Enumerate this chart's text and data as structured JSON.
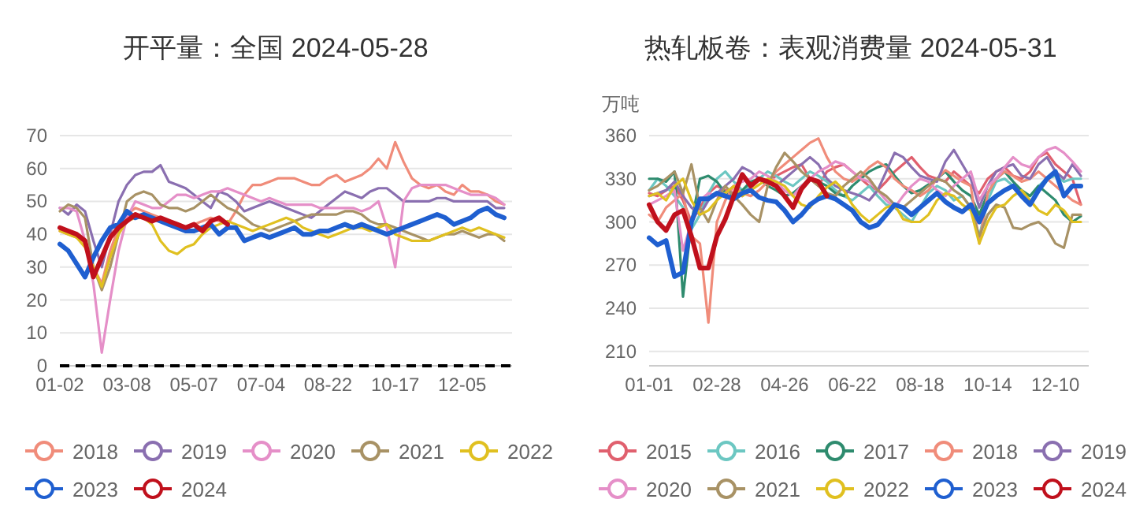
{
  "chart_data": [
    {
      "type": "line",
      "title": "开平量：全国 2024-05-28",
      "categories": [
        "01-02",
        null,
        null,
        null,
        null,
        null,
        null,
        null,
        "03-08",
        null,
        null,
        null,
        null,
        null,
        null,
        null,
        "05-07",
        null,
        null,
        null,
        null,
        null,
        null,
        null,
        "07-04",
        null,
        null,
        null,
        null,
        null,
        null,
        null,
        "08-22",
        null,
        null,
        null,
        null,
        null,
        null,
        null,
        "10-17",
        null,
        null,
        null,
        null,
        null,
        null,
        null,
        "12-05",
        null,
        null,
        null,
        null,
        null
      ],
      "ylim": [
        0,
        70
      ],
      "yticks": [
        0,
        10,
        20,
        30,
        40,
        50,
        60,
        70
      ],
      "grid": "y",
      "legend": "bottom",
      "ref_lines": [
        {
          "axis": "y",
          "value": 0,
          "color": "#000000",
          "line_style": "dashed"
        }
      ],
      "series": [
        {
          "name": "2018",
          "color": "#f08c7a",
          "values": [
            41,
            40,
            39,
            37,
            30,
            25,
            35,
            42,
            46,
            48,
            47,
            46,
            45,
            44,
            43,
            42,
            43,
            44,
            45,
            44,
            43,
            47,
            52,
            55,
            55,
            56,
            57,
            57,
            57,
            56,
            55,
            55,
            57,
            58,
            56,
            57,
            58,
            60,
            63,
            60,
            68,
            62,
            57,
            55,
            54,
            55,
            53,
            52,
            55,
            53,
            53,
            52,
            50,
            49
          ]
        },
        {
          "name": "2019",
          "color": "#8a6fb0",
          "values": [
            48,
            46,
            49,
            47,
            38,
            30,
            40,
            50,
            55,
            58,
            59,
            59,
            61,
            56,
            55,
            54,
            52,
            50,
            48,
            53,
            52,
            50,
            47,
            48,
            49,
            50,
            49,
            48,
            47,
            46,
            45,
            47,
            49,
            51,
            53,
            52,
            51,
            53,
            54,
            54,
            52,
            50,
            50,
            50,
            50,
            51,
            51,
            50,
            50,
            50,
            50,
            50,
            48,
            48
          ]
        },
        {
          "name": "2020",
          "color": "#e58fc8",
          "values": [
            48,
            48,
            47,
            38,
            25,
            4,
            20,
            35,
            45,
            50,
            49,
            48,
            48,
            50,
            52,
            52,
            51,
            52,
            53,
            53,
            54,
            53,
            52,
            51,
            50,
            51,
            50,
            49,
            49,
            49,
            49,
            48,
            48,
            48,
            48,
            48,
            47,
            48,
            50,
            42,
            30,
            50,
            54,
            55,
            55,
            55,
            55,
            54,
            53,
            52,
            52,
            52,
            51,
            49
          ]
        },
        {
          "name": "2021",
          "color": "#a89265",
          "values": [
            47,
            49,
            48,
            45,
            30,
            23,
            30,
            40,
            50,
            52,
            53,
            52,
            49,
            48,
            48,
            47,
            48,
            50,
            52,
            50,
            48,
            47,
            45,
            43,
            42,
            41,
            42,
            43,
            44,
            45,
            46,
            46,
            46,
            46,
            47,
            47,
            46,
            44,
            43,
            43,
            42,
            41,
            40,
            39,
            38,
            39,
            40,
            40,
            41,
            40,
            39,
            40,
            40,
            38
          ]
        },
        {
          "name": "2022",
          "color": "#e0c020",
          "values": [
            41,
            40,
            39,
            36,
            30,
            24,
            33,
            40,
            44,
            45,
            45,
            43,
            38,
            35,
            34,
            36,
            37,
            40,
            42,
            43,
            44,
            43,
            42,
            41,
            42,
            43,
            44,
            45,
            44,
            42,
            41,
            40,
            39,
            40,
            41,
            42,
            42,
            41,
            42,
            43,
            40,
            39,
            38,
            38,
            38,
            39,
            40,
            41,
            42,
            41,
            42,
            41,
            40,
            39
          ]
        },
        {
          "name": "2023",
          "color": "#1f5fd0",
          "values": [
            37,
            35,
            31,
            27,
            33,
            38,
            42,
            43,
            47,
            45,
            46,
            45,
            44,
            43,
            42,
            41,
            41,
            42,
            43,
            40,
            42,
            42,
            38,
            39,
            40,
            39,
            40,
            41,
            42,
            40,
            40,
            41,
            41,
            42,
            43,
            42,
            43,
            42,
            41,
            40,
            41,
            42,
            43,
            44,
            45,
            46,
            45,
            43,
            44,
            45,
            47,
            48,
            46,
            45
          ]
        },
        {
          "name": "2024",
          "color": "#c0101c",
          "values": [
            42,
            41,
            40,
            38,
            27,
            33,
            39,
            42,
            44,
            46,
            45,
            44,
            45,
            44,
            43,
            42,
            43,
            41,
            44,
            45,
            43,
            null,
            null,
            null,
            null,
            null,
            null,
            null,
            null,
            null,
            null,
            null,
            null,
            null,
            null,
            null,
            null,
            null,
            null,
            null,
            null,
            null,
            null,
            null,
            null,
            null,
            null,
            null,
            null,
            null,
            null,
            null,
            null,
            null
          ]
        }
      ]
    },
    {
      "type": "line",
      "title": "热轧板卷：表观消费量 2024-05-31",
      "ylabel": "万吨",
      "categories": [
        "01-01",
        null,
        null,
        null,
        null,
        null,
        null,
        null,
        "02-28",
        null,
        null,
        null,
        null,
        null,
        null,
        null,
        "04-26",
        null,
        null,
        null,
        null,
        null,
        null,
        null,
        "06-22",
        null,
        null,
        null,
        null,
        null,
        null,
        null,
        "08-18",
        null,
        null,
        null,
        null,
        null,
        null,
        null,
        "10-14",
        null,
        null,
        null,
        null,
        null,
        null,
        null,
        "12-10",
        null,
        null,
        null
      ],
      "ylim": [
        200,
        360
      ],
      "yticks": [
        210,
        240,
        270,
        300,
        330,
        360
      ],
      "grid": "y",
      "legend": "bottom",
      "series": [
        {
          "name": "2015",
          "color": "#e0606e",
          "values": [
            320,
            318,
            322,
            325,
            315,
            300,
            310,
            320,
            325,
            322,
            320,
            318,
            325,
            330,
            328,
            332,
            335,
            338,
            340,
            330,
            325,
            335,
            338,
            340,
            335,
            330,
            325,
            322,
            328,
            335,
            340,
            345,
            338,
            332,
            330,
            328,
            335,
            330,
            325,
            320,
            330,
            335,
            338,
            332,
            330,
            335,
            345,
            348,
            340,
            335,
            330,
            312
          ]
        },
        {
          "name": "2016",
          "color": "#6cc7c2",
          "values": [
            322,
            330,
            325,
            318,
            310,
            295,
            305,
            320,
            330,
            335,
            328,
            322,
            325,
            330,
            335,
            332,
            328,
            325,
            330,
            335,
            332,
            328,
            322,
            318,
            315,
            320,
            325,
            318,
            312,
            310,
            305,
            300,
            310,
            320,
            325,
            322,
            315,
            318,
            310,
            290,
            315,
            328,
            330,
            325,
            320,
            318,
            325,
            330,
            332,
            328,
            330,
            330
          ]
        },
        {
          "name": "2017",
          "color": "#2e8b6e",
          "values": [
            330,
            330,
            328,
            335,
            248,
            300,
            330,
            332,
            328,
            320,
            318,
            322,
            328,
            330,
            325,
            322,
            318,
            320,
            325,
            330,
            328,
            325,
            320,
            318,
            325,
            330,
            335,
            338,
            340,
            332,
            325,
            320,
            322,
            326,
            330,
            335,
            328,
            322,
            318,
            305,
            320,
            330,
            335,
            328,
            322,
            318,
            325,
            320,
            315,
            305,
            300,
            304
          ]
        },
        {
          "name": "2018",
          "color": "#f08c7a",
          "values": [
            305,
            300,
            310,
            315,
            320,
            290,
            285,
            230,
            300,
            315,
            325,
            320,
            318,
            322,
            328,
            335,
            340,
            345,
            350,
            355,
            358,
            345,
            335,
            330,
            328,
            332,
            338,
            342,
            338,
            330,
            325,
            322,
            318,
            322,
            330,
            336,
            332,
            328,
            325,
            285,
            320,
            330,
            335,
            332,
            328,
            330,
            335,
            330,
            325,
            320,
            315,
            312
          ]
        },
        {
          "name": "2019",
          "color": "#8a6fb0",
          "values": [
            318,
            320,
            322,
            328,
            318,
            310,
            305,
            315,
            320,
            325,
            330,
            338,
            335,
            330,
            328,
            325,
            330,
            335,
            340,
            345,
            340,
            330,
            325,
            322,
            320,
            318,
            315,
            322,
            335,
            348,
            345,
            338,
            332,
            330,
            328,
            342,
            350,
            340,
            330,
            310,
            325,
            335,
            338,
            340,
            332,
            330,
            340,
            345,
            335,
            330,
            340,
            332
          ]
        },
        {
          "name": "2020",
          "color": "#e58fc8",
          "values": [
            312,
            315,
            318,
            322,
            280,
            300,
            315,
            320,
            318,
            320,
            325,
            328,
            330,
            335,
            332,
            328,
            322,
            318,
            325,
            330,
            335,
            338,
            342,
            340,
            335,
            330,
            328,
            322,
            315,
            310,
            318,
            325,
            330,
            328,
            322,
            318,
            325,
            330,
            335,
            315,
            325,
            330,
            338,
            345,
            340,
            338,
            345,
            350,
            352,
            348,
            342,
            335
          ]
        },
        {
          "name": "2021",
          "color": "#a89265",
          "values": [
            322,
            325,
            330,
            335,
            320,
            340,
            310,
            300,
            315,
            325,
            318,
            312,
            305,
            300,
            325,
            338,
            348,
            342,
            335,
            330,
            325,
            320,
            318,
            325,
            330,
            335,
            330,
            322,
            318,
            312,
            310,
            315,
            320,
            325,
            330,
            328,
            322,
            318,
            310,
            290,
            305,
            312,
            310,
            296,
            295,
            298,
            300,
            295,
            285,
            282,
            305,
            305
          ]
        },
        {
          "name": "2022",
          "color": "#e0c020",
          "values": [
            318,
            320,
            315,
            325,
            330,
            315,
            305,
            308,
            315,
            320,
            325,
            318,
            322,
            326,
            330,
            328,
            325,
            318,
            312,
            310,
            318,
            324,
            328,
            322,
            312,
            305,
            300,
            305,
            310,
            312,
            302,
            300,
            300,
            305,
            315,
            320,
            318,
            312,
            308,
            285,
            300,
            310,
            312,
            318,
            322,
            315,
            308,
            305,
            312,
            308,
            300,
            300
          ]
        },
        {
          "name": "2023",
          "color": "#1f5fd0",
          "values": [
            289,
            284,
            287,
            262,
            265,
            300,
            316,
            316,
            320,
            318,
            316,
            320,
            322,
            317,
            315,
            314,
            308,
            300,
            305,
            312,
            316,
            318,
            316,
            312,
            308,
            300,
            296,
            298,
            305,
            312,
            310,
            305,
            310,
            315,
            320,
            314,
            310,
            307,
            312,
            300,
            313,
            318,
            322,
            325,
            318,
            312,
            322,
            330,
            335,
            318,
            325,
            325
          ]
        },
        {
          "name": "2024",
          "color": "#c0101c",
          "values": [
            312,
            300,
            294,
            305,
            308,
            290,
            268,
            268,
            290,
            302,
            318,
            333,
            325,
            330,
            328,
            325,
            318,
            310,
            323,
            330,
            328,
            318,
            null,
            null,
            null,
            null,
            null,
            null,
            null,
            null,
            null,
            null,
            null,
            null,
            null,
            null,
            null,
            null,
            null,
            null,
            null,
            null,
            null,
            null,
            null,
            null,
            null,
            null,
            null,
            null,
            null,
            null
          ]
        }
      ]
    }
  ]
}
